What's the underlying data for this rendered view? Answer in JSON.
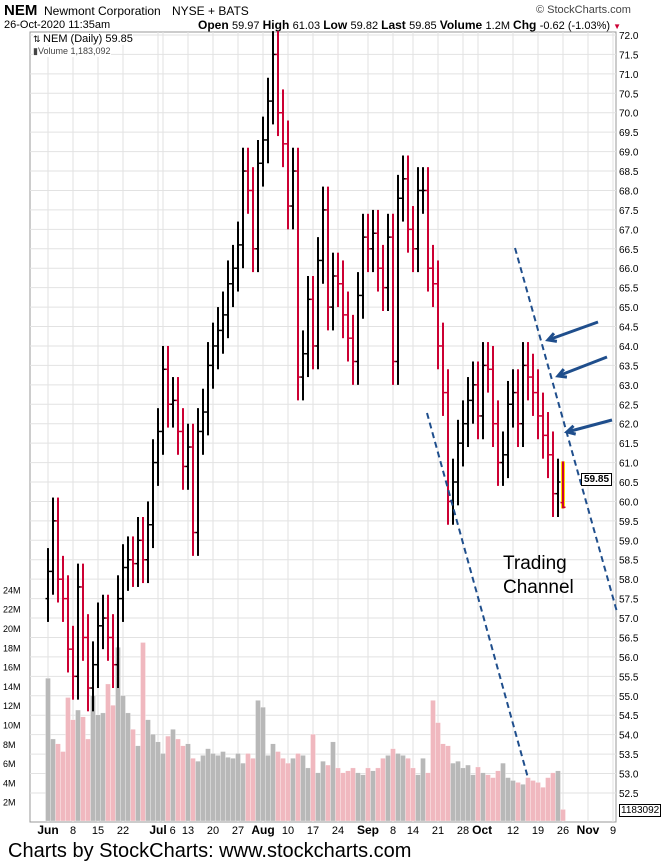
{
  "header": {
    "symbol": "NEM",
    "company": "Newmont Corporation",
    "exchange": "NYSE + BATS",
    "copyright": "© StockCharts.com",
    "datetime": "26-Oct-2020 11:35am",
    "quote": [
      {
        "k": "Open",
        "v": "59.97"
      },
      {
        "k": "High",
        "v": "61.03"
      },
      {
        "k": "Low",
        "v": "59.82"
      },
      {
        "k": "Last",
        "v": "59.85"
      },
      {
        "k": "Volume",
        "v": "1.2M"
      },
      {
        "k": "Chg",
        "v": "-0.62 (-1.03%)"
      }
    ]
  },
  "legend": {
    "price": "NEM (Daily) 59.85",
    "volume": "Volume 1,183,092"
  },
  "last_price_label": "59.85",
  "last_volume_label": "1183092",
  "annotation": [
    "Trading",
    "Channel"
  ],
  "footer": "Charts by StockCharts:  www.stockcharts.com",
  "colors": {
    "up": "#000000",
    "down": "#cc0033",
    "vol_up": "#b8b8b8",
    "vol_down": "#f0b8bf",
    "trend": "#1f4e8c",
    "highlight": "#ffd700"
  },
  "chart_data": {
    "type": "ohlc",
    "title": "NEM (Daily)",
    "ylim": [
      52.0,
      72.0
    ],
    "yticks": [
      52.5,
      53.0,
      53.5,
      54.0,
      54.5,
      55.0,
      55.5,
      56.0,
      56.5,
      57.0,
      57.5,
      58.0,
      58.5,
      59.0,
      59.5,
      60.0,
      60.5,
      61.0,
      61.5,
      62.0,
      62.5,
      63.0,
      63.5,
      64.0,
      64.5,
      65.0,
      65.5,
      66.0,
      66.5,
      67.0,
      67.5,
      68.0,
      68.5,
      69.0,
      69.5,
      70.0,
      70.5,
      71.0,
      71.5,
      72.0
    ],
    "volume_ticks": [
      "2M",
      "4M",
      "6M",
      "8M",
      "10M",
      "12M",
      "14M",
      "16M",
      "18M",
      "20M",
      "22M",
      "24M"
    ],
    "xticks": [
      {
        "label": "Jun",
        "i": 0,
        "bold": true
      },
      {
        "label": "8",
        "i": 5
      },
      {
        "label": "15",
        "i": 10
      },
      {
        "label": "22",
        "i": 15
      },
      {
        "label": "Jul",
        "i": 22,
        "bold": true
      },
      {
        "label": "6",
        "i": 23
      },
      {
        "label": "13",
        "i": 28
      },
      {
        "label": "20",
        "i": 33
      },
      {
        "label": "27",
        "i": 38
      },
      {
        "label": "Aug",
        "i": 43,
        "bold": true
      },
      {
        "label": "10",
        "i": 48
      },
      {
        "label": "17",
        "i": 53
      },
      {
        "label": "24",
        "i": 58
      },
      {
        "label": "Sep",
        "i": 64,
        "bold": true
      },
      {
        "label": "8",
        "i": 69
      },
      {
        "label": "14",
        "i": 73
      },
      {
        "label": "21",
        "i": 78
      },
      {
        "label": "28",
        "i": 83
      },
      {
        "label": "Oct",
        "i": 86,
        "bold": true
      },
      {
        "label": "12",
        "i": 93
      },
      {
        "label": "19",
        "i": 98
      },
      {
        "label": "26",
        "i": 103
      },
      {
        "label": "Nov",
        "i": 108,
        "bold": true
      },
      {
        "label": "9",
        "i": 113
      }
    ],
    "close": [
      58.2,
      59.5,
      58.0,
      57.5,
      56.2,
      55.5,
      57.8,
      56.5,
      55.2,
      55.8,
      56.8,
      57.0,
      56.5,
      55.8,
      57.5,
      58.3,
      58.5,
      58.4,
      59.0,
      58.5,
      59.4,
      61.0,
      61.8,
      63.4,
      62.5,
      62.6,
      61.8,
      60.9,
      61.4,
      59.2,
      61.8,
      62.3,
      63.5,
      64.0,
      64.4,
      64.8,
      65.6,
      66.0,
      66.6,
      68.5,
      68.0,
      66.5,
      68.7,
      69.3,
      70.3,
      71.5,
      70.0,
      69.2,
      67.6,
      68.5,
      63.2,
      63.8,
      65.2,
      64.0,
      66.2,
      67.5,
      65.0,
      65.8,
      65.6,
      64.8,
      64.2,
      63.6,
      65.3,
      66.8,
      66.5,
      66.9,
      66.0,
      65.5,
      66.8,
      63.6,
      67.8,
      68.3,
      67.0,
      66.5,
      68.0,
      68.0,
      66.0,
      65.6,
      64.0,
      62.8,
      60.0,
      60.5,
      61.5,
      62.0,
      62.6,
      63.0,
      62.2,
      63.5,
      63.4,
      62.0,
      61.0,
      61.2,
      62.5,
      62.8,
      62.0,
      63.5,
      63.2,
      62.8,
      62.2,
      61.7,
      61.2,
      60.2,
      60.5,
      59.85
    ],
    "last_bar": {
      "open": 59.97,
      "high": 61.03,
      "low": 59.82,
      "close": 59.85
    },
    "volume_millions": [
      14.8,
      8.5,
      8.0,
      7.2,
      12.8,
      10.5,
      11.5,
      10.8,
      8.5,
      13.0,
      11.0,
      11.2,
      14.2,
      12.0,
      18.0,
      13.0,
      11.2,
      9.5,
      7.8,
      18.5,
      10.5,
      9.0,
      8.2,
      7.0,
      8.8,
      9.5,
      8.5,
      7.8,
      8.0,
      6.5,
      6.2,
      6.8,
      7.5,
      7.0,
      6.8,
      7.2,
      6.6,
      6.5,
      7.0,
      6.0,
      7.0,
      6.5,
      12.5,
      11.8,
      6.8,
      8.0,
      7.2,
      6.5,
      6.0,
      6.5,
      7.0,
      6.8,
      5.5,
      9.0,
      5.0,
      6.2,
      5.8,
      8.2,
      5.5,
      5.0,
      5.2,
      5.5,
      5.0,
      4.8,
      5.5,
      5.2,
      5.5,
      6.5,
      6.8,
      7.5,
      7.0,
      6.8,
      6.5,
      5.5,
      4.8,
      6.5,
      5.0,
      12.5,
      10.2,
      8.0,
      7.8,
      6.0,
      6.2,
      5.5,
      5.8,
      4.8,
      5.6,
      5.0,
      4.8,
      4.5,
      5.2,
      6.0,
      4.5,
      4.2,
      4.0,
      3.8,
      4.5,
      4.2,
      4.0,
      3.5,
      4.5,
      5.0,
      5.2,
      1.2
    ]
  }
}
